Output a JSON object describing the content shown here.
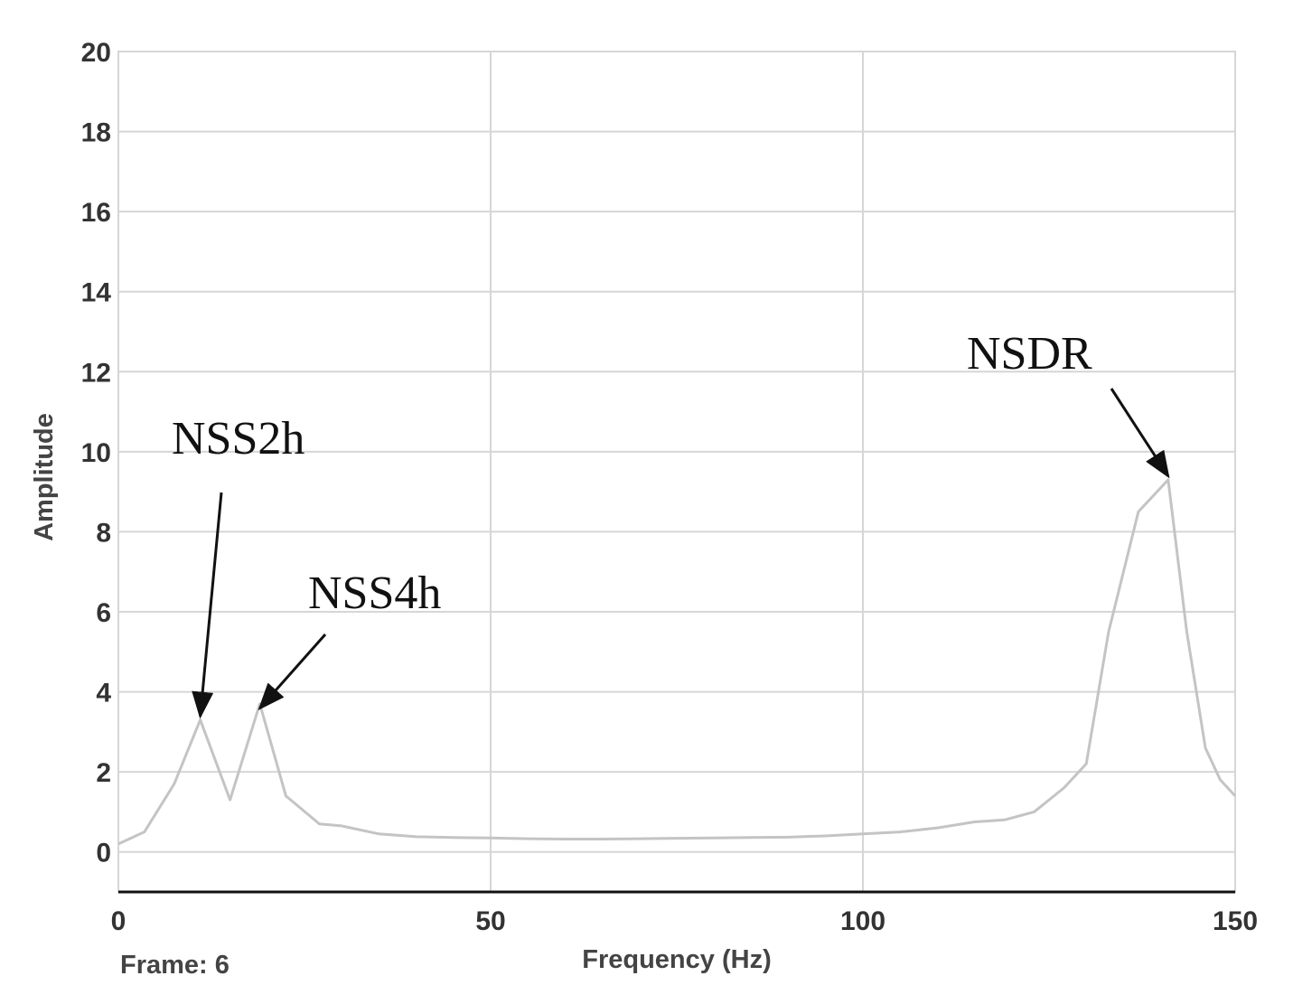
{
  "chart_data": {
    "type": "line",
    "xlabel": "Frequency (Hz)",
    "ylabel": "Amplitude",
    "xlim": [
      0,
      150
    ],
    "ylim": [
      -1,
      20
    ],
    "x_ticks": [
      0,
      50,
      100,
      150
    ],
    "y_ticks": [
      0,
      2,
      4,
      6,
      8,
      10,
      12,
      14,
      16,
      18,
      20
    ],
    "grid": true,
    "frame_label": "Frame: 6",
    "series": [
      {
        "color": "#c4c4c4",
        "x": [
          0,
          3.5,
          7.5,
          11,
          15,
          19,
          22.5,
          27,
          30,
          35,
          40,
          45,
          50,
          55,
          60,
          65,
          70,
          75,
          80,
          85,
          90,
          95,
          100,
          105,
          110,
          115,
          119,
          123,
          127,
          130,
          133,
          137,
          141,
          143.5,
          146,
          148,
          150
        ],
        "y": [
          0.2,
          0.5,
          1.7,
          3.3,
          1.3,
          3.7,
          1.4,
          0.7,
          0.65,
          0.45,
          0.38,
          0.36,
          0.35,
          0.33,
          0.32,
          0.32,
          0.33,
          0.34,
          0.35,
          0.36,
          0.37,
          0.4,
          0.45,
          0.5,
          0.6,
          0.75,
          0.8,
          1.0,
          1.6,
          2.2,
          5.5,
          8.5,
          9.3,
          5.5,
          2.6,
          1.8,
          1.4
        ]
      }
    ],
    "annotations": [
      {
        "text": "NSS2h",
        "x": 11,
        "y": 3.3
      },
      {
        "text": "NSS4h",
        "x": 19,
        "y": 3.5
      },
      {
        "text": "NSDR",
        "x": 141,
        "y": 9.3
      }
    ]
  }
}
